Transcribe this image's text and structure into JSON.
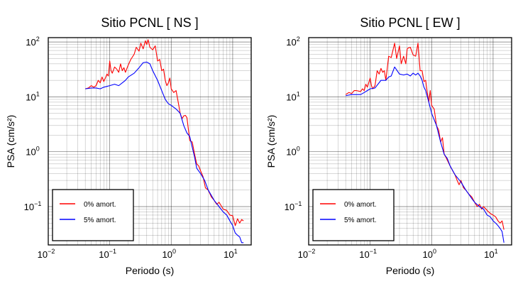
{
  "chart_data": [
    {
      "type": "line",
      "title": "Sitio PCNL [ NS ]",
      "xlabel": "Periodo (s)",
      "ylabel": "PSA (cm/s²)",
      "xscale": "log",
      "yscale": "log",
      "xlim": [
        0.01,
        20
      ],
      "ylim": [
        0.02,
        120
      ],
      "x_ticks": [
        0.01,
        0.1,
        1,
        10
      ],
      "x_tick_labels": [
        {
          "base": "10",
          "exp": "−2"
        },
        {
          "base": "10",
          "exp": "−1"
        },
        {
          "base": "10",
          "exp": "0"
        },
        {
          "base": "10",
          "exp": "1"
        }
      ],
      "y_ticks": [
        0.1,
        1,
        10,
        100
      ],
      "y_tick_labels": [
        {
          "base": "10",
          "exp": "−1"
        },
        {
          "base": "10",
          "exp": "0"
        },
        {
          "base": "10",
          "exp": "1"
        },
        {
          "base": "10",
          "exp": "2"
        }
      ],
      "grid": true,
      "legend_position": "bottom-left",
      "series": [
        {
          "name": "0% amort.",
          "color": "#ff0000",
          "points": [
            [
              0.04,
              14
            ],
            [
              0.045,
              14.5
            ],
            [
              0.05,
              16
            ],
            [
              0.055,
              15
            ],
            [
              0.06,
              16
            ],
            [
              0.065,
              20
            ],
            [
              0.07,
              18
            ],
            [
              0.075,
              23
            ],
            [
              0.08,
              19
            ],
            [
              0.085,
              22
            ],
            [
              0.09,
              26
            ],
            [
              0.095,
              24
            ],
            [
              0.1,
              45
            ],
            [
              0.105,
              30
            ],
            [
              0.11,
              27
            ],
            [
              0.12,
              35
            ],
            [
              0.13,
              32
            ],
            [
              0.14,
              28
            ],
            [
              0.15,
              40
            ],
            [
              0.16,
              30
            ],
            [
              0.17,
              34
            ],
            [
              0.18,
              28
            ],
            [
              0.2,
              38
            ],
            [
              0.22,
              48
            ],
            [
              0.25,
              60
            ],
            [
              0.27,
              80
            ],
            [
              0.3,
              68
            ],
            [
              0.32,
              95
            ],
            [
              0.35,
              75
            ],
            [
              0.38,
              105
            ],
            [
              0.4,
              90
            ],
            [
              0.42,
              110
            ],
            [
              0.45,
              80
            ],
            [
              0.5,
              72
            ],
            [
              0.55,
              85
            ],
            [
              0.6,
              45
            ],
            [
              0.65,
              48
            ],
            [
              0.7,
              30
            ],
            [
              0.75,
              32
            ],
            [
              0.8,
              20
            ],
            [
              0.85,
              16
            ],
            [
              0.9,
              18
            ],
            [
              0.95,
              22
            ],
            [
              1.0,
              14
            ],
            [
              1.1,
              12
            ],
            [
              1.2,
              13
            ],
            [
              1.3,
              8
            ],
            [
              1.4,
              5
            ],
            [
              1.5,
              4
            ],
            [
              1.6,
              4.5
            ],
            [
              1.7,
              4.6
            ],
            [
              1.8,
              4.2
            ],
            [
              1.9,
              2.6
            ],
            [
              2.0,
              1.6
            ],
            [
              2.2,
              1.5
            ],
            [
              2.4,
              0.9
            ],
            [
              2.6,
              0.6
            ],
            [
              2.8,
              0.55
            ],
            [
              3.0,
              0.45
            ],
            [
              3.3,
              0.35
            ],
            [
              3.6,
              0.22
            ],
            [
              4.0,
              0.2
            ],
            [
              4.5,
              0.15
            ],
            [
              5.0,
              0.13
            ],
            [
              5.5,
              0.11
            ],
            [
              6.0,
              0.12
            ],
            [
              7.0,
              0.09
            ],
            [
              8.0,
              0.085
            ],
            [
              9.0,
              0.07
            ],
            [
              10,
              0.068
            ],
            [
              11,
              0.045
            ],
            [
              12,
              0.06
            ],
            [
              13,
              0.05
            ],
            [
              14,
              0.058
            ],
            [
              15,
              0.055
            ]
          ]
        },
        {
          "name": "5% amort.",
          "color": "#0000ff",
          "points": [
            [
              0.04,
              14
            ],
            [
              0.05,
              14.5
            ],
            [
              0.06,
              14.5
            ],
            [
              0.07,
              14
            ],
            [
              0.08,
              15
            ],
            [
              0.09,
              15.5
            ],
            [
              0.1,
              16
            ],
            [
              0.12,
              17
            ],
            [
              0.14,
              16
            ],
            [
              0.16,
              18
            ],
            [
              0.18,
              20
            ],
            [
              0.2,
              23
            ],
            [
              0.25,
              27
            ],
            [
              0.3,
              34
            ],
            [
              0.35,
              42
            ],
            [
              0.4,
              43
            ],
            [
              0.45,
              40
            ],
            [
              0.5,
              30
            ],
            [
              0.6,
              20
            ],
            [
              0.7,
              13
            ],
            [
              0.8,
              9
            ],
            [
              0.9,
              7.5
            ],
            [
              1.0,
              7
            ],
            [
              1.2,
              6
            ],
            [
              1.4,
              5
            ],
            [
              1.6,
              3
            ],
            [
              1.8,
              2.2
            ],
            [
              2.0,
              1.9
            ],
            [
              2.2,
              1.2
            ],
            [
              2.4,
              0.8
            ],
            [
              2.6,
              0.5
            ],
            [
              3.0,
              0.4
            ],
            [
              3.5,
              0.3
            ],
            [
              4.0,
              0.2
            ],
            [
              5.0,
              0.13
            ],
            [
              6.0,
              0.1
            ],
            [
              7.0,
              0.08
            ],
            [
              8.0,
              0.07
            ],
            [
              9.0,
              0.055
            ],
            [
              10,
              0.045
            ],
            [
              11,
              0.033
            ],
            [
              12,
              0.03
            ],
            [
              13,
              0.028
            ],
            [
              14,
              0.022
            ],
            [
              15,
              0.022
            ]
          ]
        }
      ]
    },
    {
      "type": "line",
      "title": "Sitio PCNL [ EW ]",
      "xlabel": "Periodo (s)",
      "ylabel": "PSA (cm/s²)",
      "xscale": "log",
      "yscale": "log",
      "xlim": [
        0.01,
        20
      ],
      "ylim": [
        0.02,
        120
      ],
      "x_ticks": [
        0.01,
        0.1,
        1,
        10
      ],
      "x_tick_labels": [
        {
          "base": "10",
          "exp": "−2"
        },
        {
          "base": "10",
          "exp": "−1"
        },
        {
          "base": "10",
          "exp": "0"
        },
        {
          "base": "10",
          "exp": "1"
        }
      ],
      "y_ticks": [
        0.1,
        1,
        10,
        100
      ],
      "y_tick_labels": [
        {
          "base": "10",
          "exp": "−1"
        },
        {
          "base": "10",
          "exp": "0"
        },
        {
          "base": "10",
          "exp": "1"
        },
        {
          "base": "10",
          "exp": "2"
        }
      ],
      "grid": true,
      "legend_position": "bottom-left",
      "series": [
        {
          "name": "0% amort.",
          "color": "#ff0000",
          "points": [
            [
              0.04,
              11
            ],
            [
              0.045,
              12
            ],
            [
              0.05,
              11.5
            ],
            [
              0.055,
              13
            ],
            [
              0.06,
              13
            ],
            [
              0.07,
              12.5
            ],
            [
              0.075,
              14
            ],
            [
              0.08,
              13
            ],
            [
              0.085,
              17
            ],
            [
              0.09,
              15
            ],
            [
              0.1,
              22
            ],
            [
              0.105,
              16
            ],
            [
              0.11,
              14
            ],
            [
              0.12,
              16
            ],
            [
              0.13,
              30
            ],
            [
              0.14,
              26
            ],
            [
              0.15,
              33
            ],
            [
              0.16,
              28
            ],
            [
              0.17,
              30
            ],
            [
              0.18,
              20
            ],
            [
              0.2,
              55
            ],
            [
              0.22,
              52
            ],
            [
              0.25,
              95
            ],
            [
              0.27,
              50
            ],
            [
              0.3,
              85
            ],
            [
              0.32,
              40
            ],
            [
              0.35,
              55
            ],
            [
              0.38,
              40
            ],
            [
              0.4,
              75
            ],
            [
              0.42,
              78
            ],
            [
              0.45,
              80
            ],
            [
              0.5,
              58
            ],
            [
              0.55,
              55
            ],
            [
              0.6,
              95
            ],
            [
              0.65,
              30
            ],
            [
              0.7,
              30
            ],
            [
              0.75,
              19
            ],
            [
              0.8,
              20
            ],
            [
              0.85,
              12
            ],
            [
              0.9,
              8
            ],
            [
              0.95,
              13
            ],
            [
              1.0,
              7
            ],
            [
              1.1,
              6
            ],
            [
              1.2,
              3
            ],
            [
              1.3,
              2.5
            ],
            [
              1.4,
              1.5
            ],
            [
              1.5,
              1.8
            ],
            [
              1.6,
              0.9
            ],
            [
              1.7,
              0.8
            ],
            [
              1.8,
              0.7
            ],
            [
              2.0,
              0.55
            ],
            [
              2.2,
              0.45
            ],
            [
              2.4,
              0.38
            ],
            [
              2.6,
              0.3
            ],
            [
              2.8,
              0.25
            ],
            [
              3.0,
              0.3
            ],
            [
              3.3,
              0.22
            ],
            [
              3.6,
              0.2
            ],
            [
              4.0,
              0.17
            ],
            [
              4.5,
              0.15
            ],
            [
              5.0,
              0.12
            ],
            [
              5.5,
              0.1
            ],
            [
              6.0,
              0.11
            ],
            [
              6.5,
              0.09
            ],
            [
              7.0,
              0.1
            ],
            [
              8.0,
              0.085
            ],
            [
              9.0,
              0.075
            ],
            [
              10,
              0.07
            ],
            [
              11,
              0.065
            ],
            [
              12,
              0.055
            ],
            [
              13,
              0.05
            ],
            [
              14,
              0.055
            ],
            [
              15,
              0.038
            ]
          ]
        },
        {
          "name": "5% amort.",
          "color": "#0000ff",
          "points": [
            [
              0.04,
              10.5
            ],
            [
              0.05,
              11
            ],
            [
              0.06,
              11
            ],
            [
              0.07,
              11
            ],
            [
              0.08,
              12
            ],
            [
              0.09,
              13
            ],
            [
              0.1,
              14
            ],
            [
              0.12,
              14.5
            ],
            [
              0.15,
              20
            ],
            [
              0.18,
              20
            ],
            [
              0.2,
              23
            ],
            [
              0.22,
              24
            ],
            [
              0.25,
              35
            ],
            [
              0.3,
              26
            ],
            [
              0.35,
              25
            ],
            [
              0.4,
              26
            ],
            [
              0.45,
              24
            ],
            [
              0.5,
              27
            ],
            [
              0.55,
              25
            ],
            [
              0.6,
              27
            ],
            [
              0.65,
              24
            ],
            [
              0.7,
              20
            ],
            [
              0.75,
              15
            ],
            [
              0.8,
              13
            ],
            [
              0.9,
              8
            ],
            [
              1.0,
              5
            ],
            [
              1.2,
              3
            ],
            [
              1.4,
              1.5
            ],
            [
              1.6,
              0.9
            ],
            [
              1.8,
              0.75
            ],
            [
              2.0,
              0.55
            ],
            [
              2.4,
              0.38
            ],
            [
              3.0,
              0.28
            ],
            [
              3.6,
              0.2
            ],
            [
              4.0,
              0.17
            ],
            [
              4.5,
              0.14
            ],
            [
              5.0,
              0.12
            ],
            [
              6.0,
              0.1
            ],
            [
              7.0,
              0.09
            ],
            [
              8.0,
              0.07
            ],
            [
              9.0,
              0.065
            ],
            [
              10,
              0.055
            ],
            [
              11,
              0.05
            ],
            [
              12,
              0.045
            ],
            [
              13,
              0.04
            ],
            [
              14,
              0.035
            ],
            [
              15,
              0.022
            ]
          ]
        }
      ]
    }
  ]
}
